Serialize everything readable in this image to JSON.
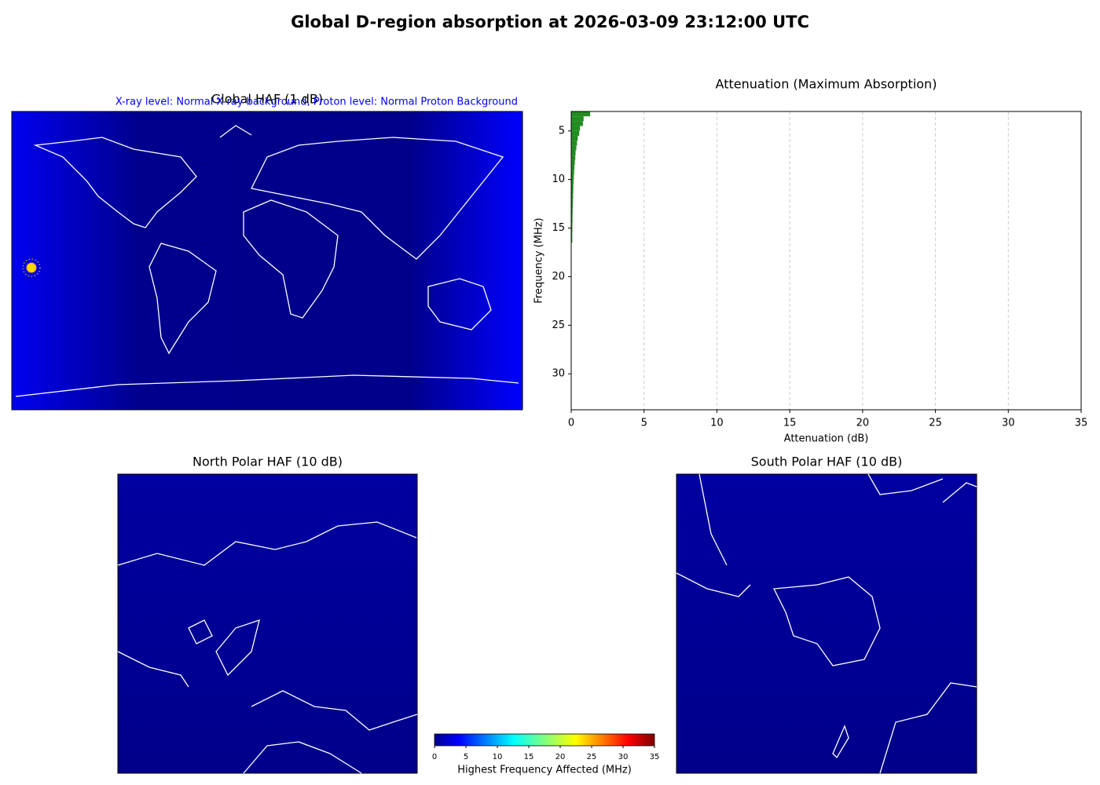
{
  "title": "Global D-region absorption at 2026-03-09 23:12:00 UTC",
  "chart_data": [
    {
      "type": "map",
      "title": "Global HAF (1 dB)",
      "subtitle": "X-ray level: Normal X-ray background, Proton level: Normal Proton Background"
    },
    {
      "type": "barh",
      "title": "Attenuation (Maximum Absorption)",
      "xlabel": "Attenuation (dB)",
      "ylabel": "Frequency (MHz)",
      "color": "#228b22",
      "y": [
        3.25,
        3.75,
        4.25,
        4.75,
        5.25,
        5.75,
        6.25,
        6.75,
        7.25,
        7.75,
        8.25,
        8.75,
        9.25,
        9.75,
        10.25,
        10.75,
        11.25,
        11.75,
        12.25,
        12.75,
        13.25,
        13.75,
        14.25,
        14.75,
        15.25,
        15.75,
        16.25
      ],
      "values": [
        1.3,
        0.85,
        0.8,
        0.6,
        0.55,
        0.45,
        0.4,
        0.35,
        0.3,
        0.28,
        0.25,
        0.22,
        0.2,
        0.18,
        0.16,
        0.15,
        0.14,
        0.13,
        0.12,
        0.11,
        0.1,
        0.09,
        0.09,
        0.08,
        0.08,
        0.07,
        0.07
      ],
      "xlim": [
        0,
        35
      ],
      "xticks": [
        0,
        5,
        10,
        15,
        20,
        25,
        30,
        35
      ],
      "ylim": [
        3.0,
        33.7
      ],
      "yticks": [
        5,
        10,
        15,
        20,
        25,
        30
      ],
      "y_inverted": true,
      "grid": "x"
    },
    {
      "type": "map",
      "title": "North Polar HAF (10 dB)"
    },
    {
      "type": "map",
      "title": "South Polar HAF (10 dB)"
    },
    {
      "type": "colorbar",
      "label": "Highest Frequency Affected (MHz)",
      "colormap": "jet",
      "lim": [
        0,
        35
      ],
      "ticks": [
        0,
        5,
        10,
        15,
        20,
        25,
        30,
        35
      ]
    }
  ]
}
